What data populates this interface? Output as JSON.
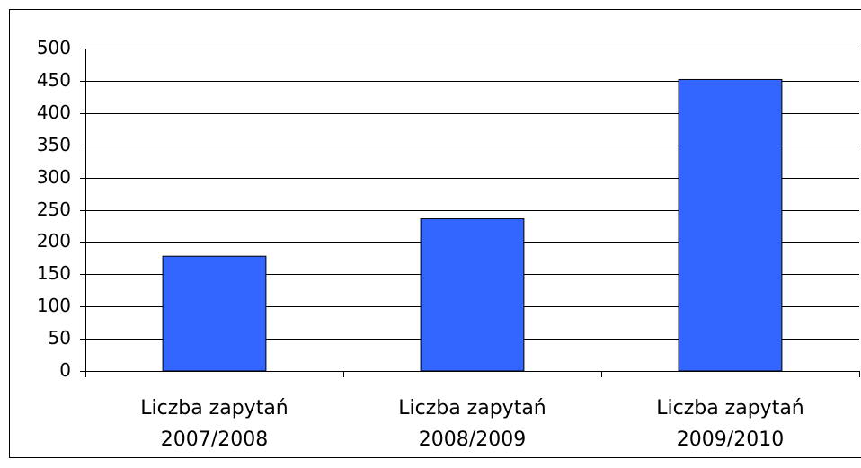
{
  "chart_data": {
    "type": "bar",
    "categories": [
      "Liczba zapytań\n2007/2008",
      "Liczba zapytań\n2008/2009",
      "Liczba zapytań\n2009/2010"
    ],
    "values": [
      178,
      236,
      452
    ],
    "color": "#3366ff",
    "ylim": [
      0,
      500
    ],
    "yticks": [
      0,
      50,
      100,
      150,
      200,
      250,
      300,
      350,
      400,
      450,
      500
    ],
    "grid": true
  }
}
